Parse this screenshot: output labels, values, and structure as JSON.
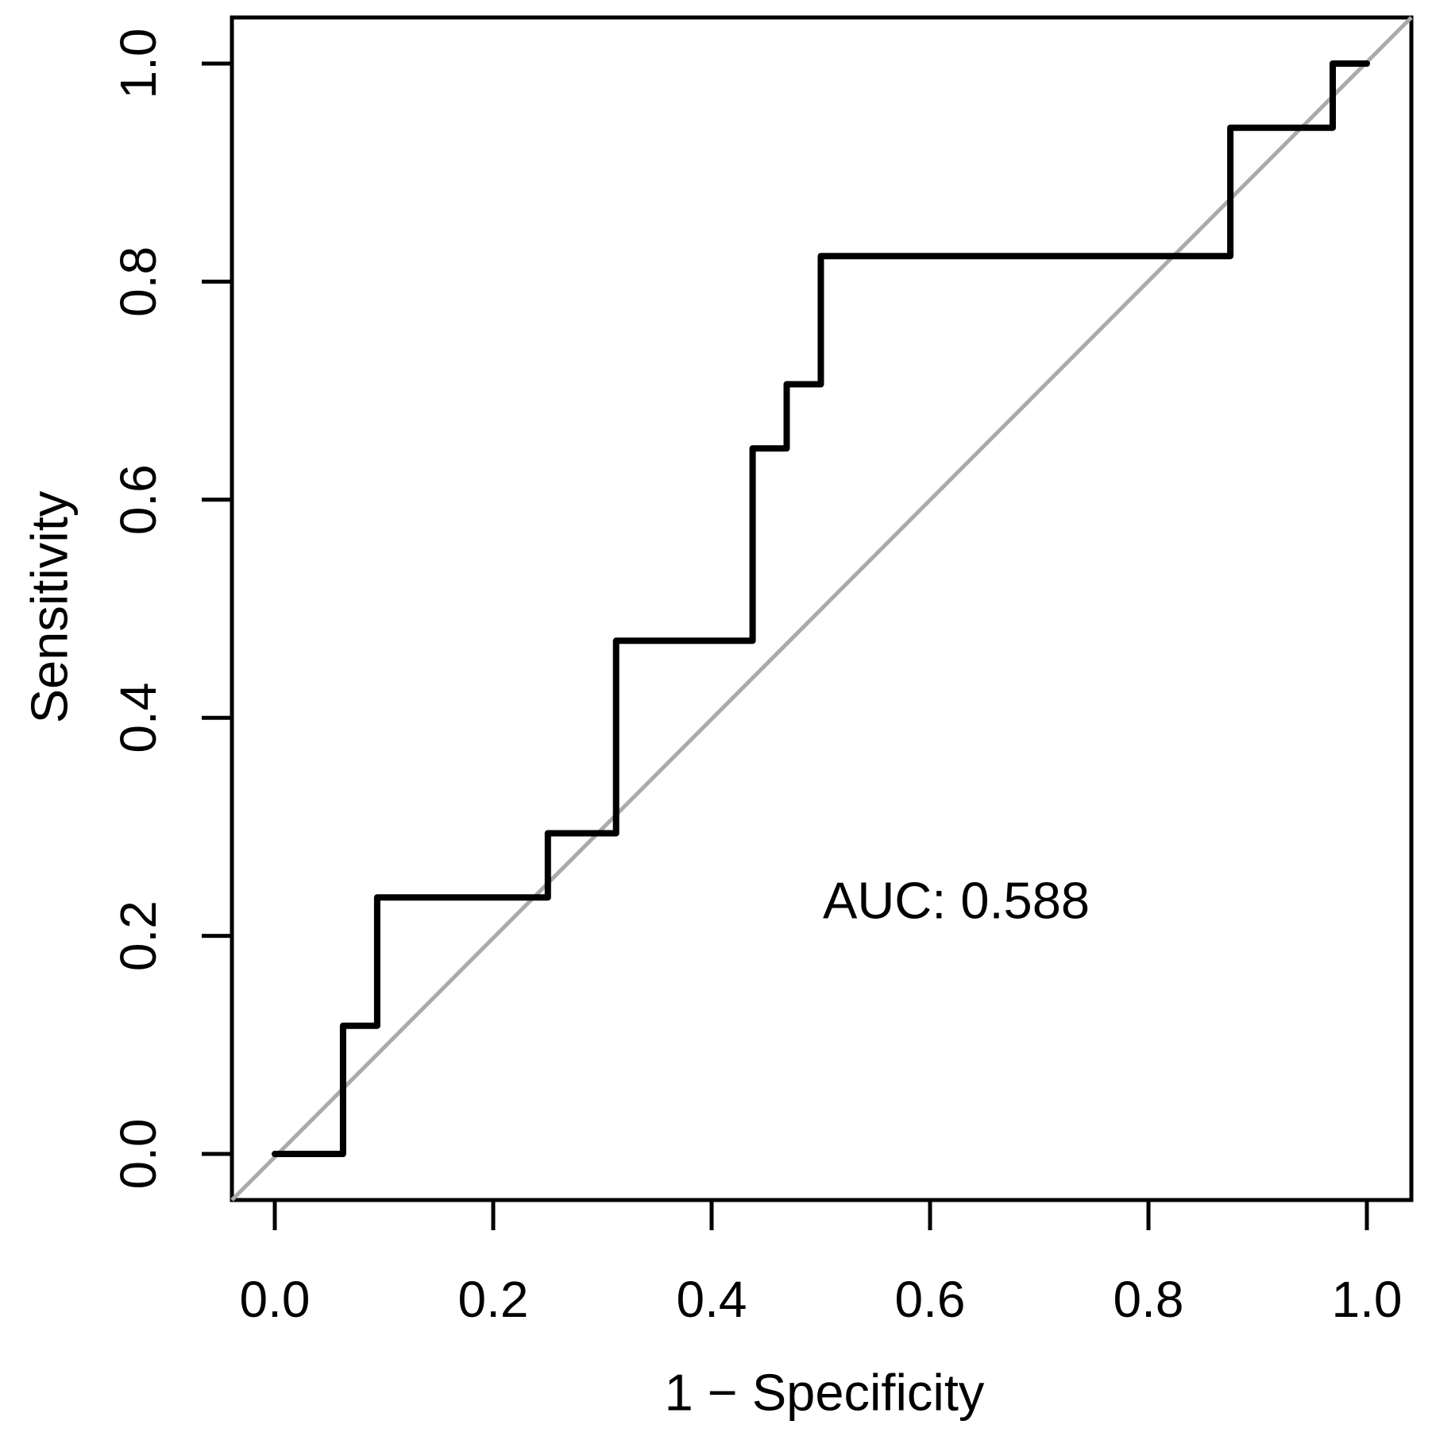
{
  "chart_data": {
    "type": "line",
    "subtype": "roc-step-curve",
    "title": "",
    "xlabel": "1 − Specificity",
    "ylabel": "Sensitivity",
    "xlim": [
      -0.04,
      1.04
    ],
    "ylim": [
      -0.04,
      1.04
    ],
    "grid": false,
    "legend": null,
    "x_ticks": [
      0.0,
      0.2,
      0.4,
      0.6,
      0.8,
      1.0
    ],
    "x_tick_labels": [
      "0.0",
      "0.2",
      "0.4",
      "0.6",
      "0.8",
      "1.0"
    ],
    "y_ticks": [
      0.0,
      0.2,
      0.4,
      0.6,
      0.8,
      1.0
    ],
    "y_tick_labels": [
      "0.0",
      "0.2",
      "0.4",
      "0.6",
      "0.8",
      "1.0"
    ],
    "annotation": {
      "text": "AUC: 0.588",
      "x": 0.62,
      "y": 0.23
    },
    "auc_value": 0.588,
    "reference_line": {
      "name": "chance-diagonal",
      "from": [
        0,
        0
      ],
      "to": [
        1,
        1
      ],
      "color": "#aaaaaa",
      "extends_to_plot_corners": true
    },
    "series": [
      {
        "name": "ROC curve",
        "color": "#000000",
        "step": true,
        "points": [
          [
            0.0,
            0.0
          ],
          [
            0.0625,
            0.0
          ],
          [
            0.0625,
            0.1176
          ],
          [
            0.09375,
            0.1176
          ],
          [
            0.09375,
            0.2353
          ],
          [
            0.25,
            0.2353
          ],
          [
            0.25,
            0.2941
          ],
          [
            0.3125,
            0.2941
          ],
          [
            0.3125,
            0.4706
          ],
          [
            0.4375,
            0.4706
          ],
          [
            0.4375,
            0.6471
          ],
          [
            0.46875,
            0.6471
          ],
          [
            0.46875,
            0.7059
          ],
          [
            0.5,
            0.7059
          ],
          [
            0.5,
            0.8235
          ],
          [
            0.875,
            0.8235
          ],
          [
            0.875,
            0.9412
          ],
          [
            0.96875,
            0.9412
          ],
          [
            0.96875,
            1.0
          ],
          [
            1.0,
            1.0
          ]
        ]
      }
    ],
    "colors": {
      "curve": "#000000",
      "diagonal": "#aaaaaa",
      "axis": "#000000",
      "text": "#000000",
      "background": "#ffffff"
    }
  }
}
